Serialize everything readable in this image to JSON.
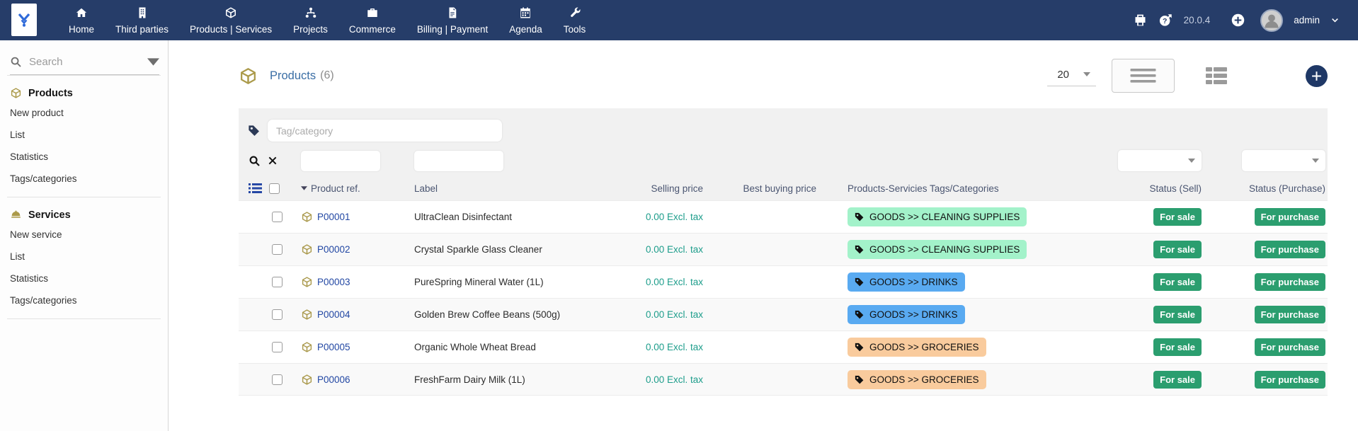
{
  "topbar": {
    "menu": [
      {
        "label": "Home",
        "icon": "home-icon"
      },
      {
        "label": "Third parties",
        "icon": "building-icon"
      },
      {
        "label": "Products | Services",
        "icon": "cube-icon"
      },
      {
        "label": "Projects",
        "icon": "sitemap-icon"
      },
      {
        "label": "Commerce",
        "icon": "briefcase-icon"
      },
      {
        "label": "Billing | Payment",
        "icon": "invoice-icon"
      },
      {
        "label": "Agenda",
        "icon": "calendar-icon"
      },
      {
        "label": "Tools",
        "icon": "tools-icon"
      }
    ],
    "version": "20.0.4",
    "user": "admin"
  },
  "sidebar": {
    "search_placeholder": "Search",
    "sections": [
      {
        "title": "Products",
        "icon": "cube-icon",
        "items": [
          "New product",
          "List",
          "Statistics",
          "Tags/categories"
        ]
      },
      {
        "title": "Services",
        "icon": "service-icon",
        "items": [
          "New service",
          "List",
          "Statistics",
          "Tags/categories"
        ]
      }
    ]
  },
  "main": {
    "title": "Products",
    "count": "(6)",
    "page_size": "20",
    "tag_filter_placeholder": "Tag/category",
    "columns": {
      "ref": "Product ref.",
      "label": "Label",
      "selling": "Selling price",
      "buying": "Best buying price",
      "tags": "Products-Servicies Tags/Categories",
      "status_sell": "Status (Sell)",
      "status_purchase": "Status (Purchase)"
    },
    "rows": [
      {
        "ref": "P00001",
        "label": "UltraClean Disinfectant",
        "price": "0.00 Excl. tax",
        "tag": "GOODS >> CLEANING SUPPLIES",
        "tag_color": "#a3f2ca",
        "sell": "For sale",
        "purchase": "For purchase"
      },
      {
        "ref": "P00002",
        "label": "Crystal Sparkle Glass Cleaner",
        "price": "0.00 Excl. tax",
        "tag": "GOODS >> CLEANING SUPPLIES",
        "tag_color": "#a3f2ca",
        "sell": "For sale",
        "purchase": "For purchase"
      },
      {
        "ref": "P00003",
        "label": "PureSpring Mineral Water (1L)",
        "price": "0.00 Excl. tax",
        "tag": "GOODS >> DRINKS",
        "tag_color": "#59aaf1",
        "sell": "For sale",
        "purchase": "For purchase"
      },
      {
        "ref": "P00004",
        "label": "Golden Brew Coffee Beans (500g)",
        "price": "0.00 Excl. tax",
        "tag": "GOODS >> DRINKS",
        "tag_color": "#59aaf1",
        "sell": "For sale",
        "purchase": "For purchase"
      },
      {
        "ref": "P00005",
        "label": "Organic Whole Wheat Bread",
        "price": "0.00 Excl. tax",
        "tag": "GOODS >> GROCERIES",
        "tag_color": "#f9cb9d",
        "sell": "For sale",
        "purchase": "For purchase"
      },
      {
        "ref": "P00006",
        "label": "FreshFarm Dairy Milk (1L)",
        "price": "0.00 Excl. tax",
        "tag": "GOODS >> GROCERIES",
        "tag_color": "#f9cb9d",
        "sell": "For sale",
        "purchase": "For purchase"
      }
    ]
  },
  "colors": {
    "topbar_bg": "#263d69",
    "title_text": "#3a6ea5",
    "link_text": "#2247a3",
    "price_text": "#1d9d8b",
    "status_badge_bg": "#2b9e6f",
    "tag_cleaning": "#a3f2ca",
    "tag_drinks": "#59aaf1",
    "tag_groceries": "#f9cb9d"
  }
}
